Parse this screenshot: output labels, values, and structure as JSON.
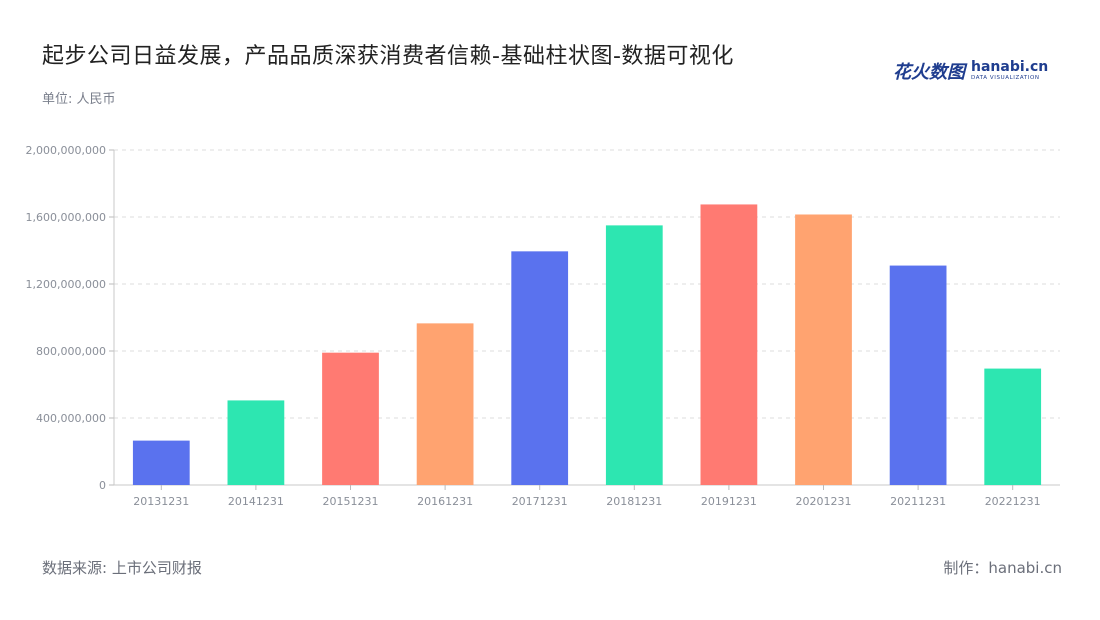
{
  "header": {
    "title": "起步公司日益发展，产品品质深获消费者信赖-基础柱状图-数据可视化",
    "unit": "单位: 人民币"
  },
  "logo": {
    "cn": "花火数图",
    "en": "hanabi.cn",
    "sub": "DATA VISUALIZATION"
  },
  "footer": {
    "source": "数据来源: 上市公司财报",
    "credit": "制作：hanabi.cn"
  },
  "colors": [
    "#5a72ee",
    "#2de6b1",
    "#ff7a72",
    "#ffa370"
  ],
  "chart_data": {
    "type": "bar",
    "title": "起步公司日益发展，产品品质深获消费者信赖-基础柱状图-数据可视化",
    "ylabel": "单位: 人民币",
    "xlabel": "",
    "categories": [
      "20131231",
      "20141231",
      "20151231",
      "20161231",
      "20171231",
      "20181231",
      "20191231",
      "20201231",
      "20211231",
      "20221231"
    ],
    "values": [
      265000000,
      505000000,
      790000000,
      965000000,
      1395000000,
      1550000000,
      1675000000,
      1615000000,
      1310000000,
      695000000
    ],
    "ylim": [
      0,
      2000000000
    ],
    "yticks": [
      0,
      400000000,
      800000000,
      1200000000,
      1600000000,
      2000000000
    ],
    "ytick_labels": [
      "0",
      "400,000,000",
      "800,000,000",
      "1,200,000,000",
      "1,600,000,000",
      "2,000,000,000"
    ],
    "grid": true,
    "legend": "none"
  }
}
